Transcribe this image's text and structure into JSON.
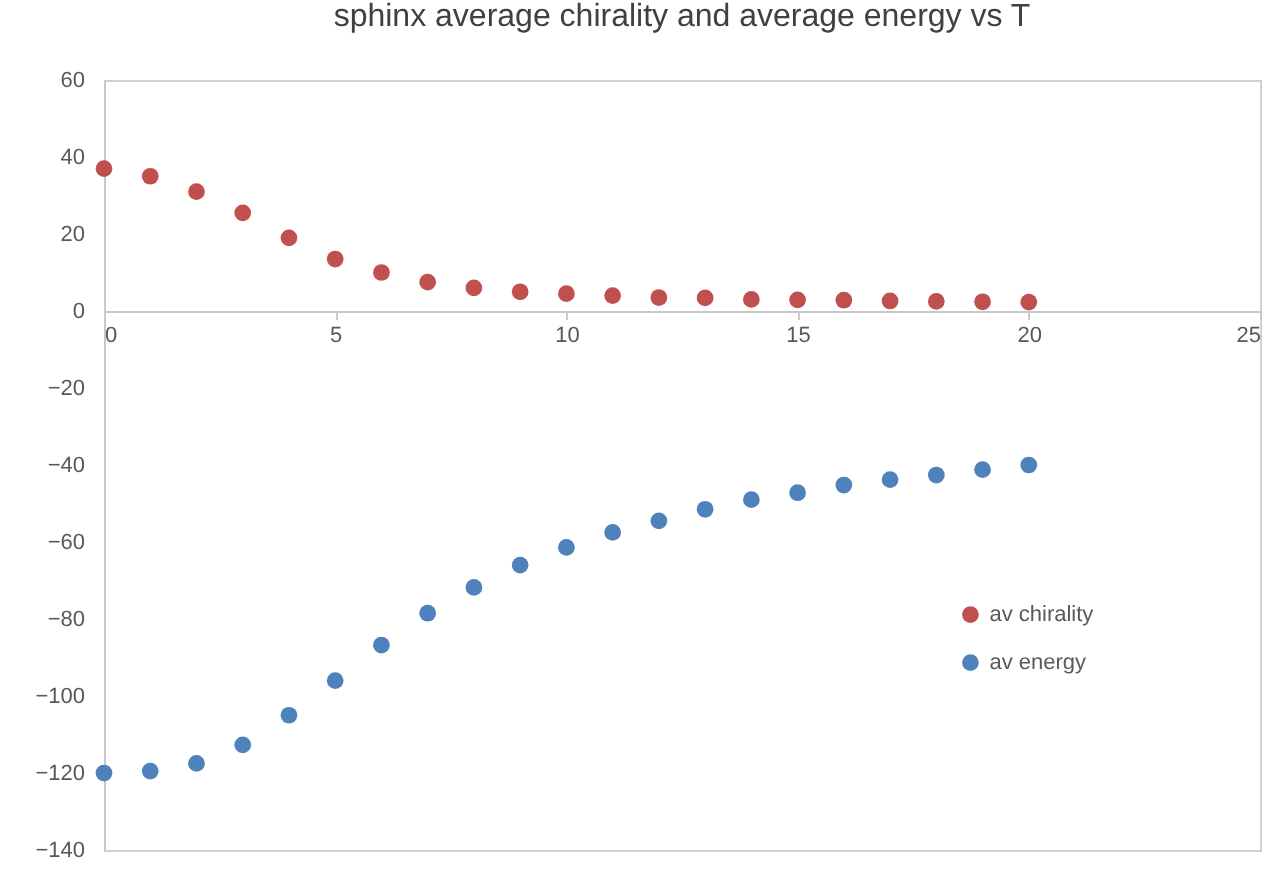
{
  "chart_data": {
    "type": "scatter",
    "title": "sphinx average chirality and average energy vs T",
    "x": [
      0,
      1,
      2,
      3,
      4,
      5,
      6,
      7,
      8,
      9,
      10,
      11,
      12,
      13,
      14,
      15,
      16,
      17,
      18,
      19,
      20
    ],
    "series": [
      {
        "name": "av chirality",
        "color": "#c0504d",
        "values": [
          37,
          35,
          31,
          25.5,
          19,
          13.5,
          10,
          7.5,
          6,
          5,
          4.5,
          4,
          3.5,
          3.4,
          3,
          2.9,
          2.8,
          2.6,
          2.5,
          2.4,
          2.3
        ]
      },
      {
        "name": "av energy",
        "color": "#4f81bd",
        "values": [
          -120,
          -119.5,
          -117.5,
          -112.7,
          -105,
          -96,
          -86.8,
          -78.5,
          -71.8,
          -66,
          -61.4,
          -57.5,
          -54.5,
          -51.5,
          -49,
          -47.2,
          -45.2,
          -43.8,
          -42.6,
          -41.2,
          -40
        ]
      }
    ],
    "xlim": [
      0,
      25
    ],
    "xticks": [
      0,
      5,
      10,
      15,
      20,
      25
    ],
    "ylim": [
      -140,
      60
    ],
    "yticks": [
      -140,
      -120,
      -100,
      -80,
      -60,
      -40,
      -20,
      0,
      20,
      40,
      60
    ],
    "marker": "circle",
    "legend": "right",
    "grid": false
  }
}
